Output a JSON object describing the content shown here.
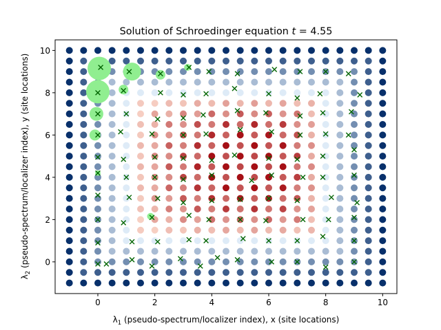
{
  "chart_data": {
    "type": "scatter",
    "title_prefix": "Solution of Schroedinger equation ",
    "title_var": "t",
    "title_value": " = 4.55",
    "xlabel_lambda": "λ",
    "xlabel_sub": "1",
    "xlabel_rest": " (pseudo-spectrum/localizer index), x (site locations)",
    "ylabel_lambda": "λ",
    "ylabel_sub": "2",
    "ylabel_rest": " (pseudo-spectrum/localizer index), y (site locations)",
    "xlim": [
      -1.5,
      10.5
    ],
    "ylim": [
      -1.5,
      10.5
    ],
    "xticks": [
      "0",
      "2",
      "4",
      "6",
      "8",
      "10"
    ],
    "yticks": [
      "0",
      "2",
      "4",
      "6",
      "8",
      "10"
    ],
    "tick_values": [
      0,
      2,
      4,
      6,
      8,
      10
    ],
    "grid": {
      "xmin": -1,
      "xmax": 10,
      "ymin": -1,
      "ymax": 10,
      "step": 0.5
    },
    "colors": {
      "blue_dark": "#08306b",
      "blue_light": "#deebf7",
      "red_light": "#fee0d2",
      "red_dark": "#a50f15",
      "marker_green": "#006400",
      "psi_green": "#90ee90"
    },
    "x_markers": [
      [
        0.0,
        -0.1
      ],
      [
        0.3,
        -0.1
      ],
      [
        1.2,
        0.1
      ],
      [
        1.9,
        -0.2
      ],
      [
        2.9,
        0.15
      ],
      [
        3.6,
        -0.2
      ],
      [
        4.2,
        0.2
      ],
      [
        4.9,
        0.1
      ],
      [
        6.1,
        -0.0
      ],
      [
        7.0,
        -0.0
      ],
      [
        8.0,
        -0.25
      ],
      [
        9.0,
        -0.0
      ],
      [
        0.0,
        0.9
      ],
      [
        1.2,
        0.95
      ],
      [
        2.1,
        0.95
      ],
      [
        3.2,
        1.05
      ],
      [
        3.8,
        1.0
      ],
      [
        5.1,
        1.1
      ],
      [
        6.0,
        1.0
      ],
      [
        7.0,
        1.0
      ],
      [
        7.9,
        1.2
      ],
      [
        9.0,
        1.0
      ],
      [
        0.0,
        2.0
      ],
      [
        0.9,
        1.85
      ],
      [
        1.9,
        2.1
      ],
      [
        3.2,
        2.2
      ],
      [
        3.9,
        2.0
      ],
      [
        5.0,
        2.0
      ],
      [
        5.9,
        1.95
      ],
      [
        7.2,
        2.0
      ],
      [
        8.1,
        2.0
      ],
      [
        9.0,
        2.1
      ],
      [
        0.0,
        3.15
      ],
      [
        1.1,
        3.05
      ],
      [
        2.1,
        3.0
      ],
      [
        3.0,
        2.8
      ],
      [
        4.0,
        2.9
      ],
      [
        5.0,
        2.95
      ],
      [
        6.0,
        3.0
      ],
      [
        7.0,
        2.9
      ],
      [
        8.2,
        3.05
      ],
      [
        9.1,
        2.8
      ],
      [
        0.0,
        4.2
      ],
      [
        1.0,
        4.0
      ],
      [
        2.0,
        4.0
      ],
      [
        3.0,
        3.9
      ],
      [
        4.0,
        4.1
      ],
      [
        5.4,
        3.85
      ],
      [
        6.1,
        4.1
      ],
      [
        7.2,
        4.0
      ],
      [
        7.9,
        4.0
      ],
      [
        9.0,
        4.1
      ],
      [
        0.0,
        4.95
      ],
      [
        0.9,
        4.85
      ],
      [
        2.0,
        4.95
      ],
      [
        3.0,
        4.9
      ],
      [
        4.0,
        4.8
      ],
      [
        4.8,
        5.05
      ],
      [
        6.0,
        4.9
      ],
      [
        7.0,
        4.85
      ],
      [
        7.9,
        5.0
      ],
      [
        9.0,
        5.3
      ],
      [
        0.0,
        6.0
      ],
      [
        0.8,
        6.15
      ],
      [
        1.9,
        6.05
      ],
      [
        3.0,
        6.0
      ],
      [
        3.8,
        6.05
      ],
      [
        5.0,
        6.25
      ],
      [
        6.1,
        6.15
      ],
      [
        7.1,
        6.0
      ],
      [
        8.0,
        6.05
      ],
      [
        8.8,
        6.0
      ],
      [
        0.0,
        7.0
      ],
      [
        1.0,
        7.0
      ],
      [
        2.1,
        6.75
      ],
      [
        3.0,
        6.8
      ],
      [
        3.7,
        6.95
      ],
      [
        4.9,
        7.15
      ],
      [
        5.9,
        7.05
      ],
      [
        7.1,
        6.9
      ],
      [
        7.9,
        7.05
      ],
      [
        8.9,
        7.1
      ],
      [
        0.0,
        8.0
      ],
      [
        0.9,
        8.1
      ],
      [
        2.2,
        8.0
      ],
      [
        3.0,
        7.9
      ],
      [
        3.8,
        7.95
      ],
      [
        4.8,
        8.2
      ],
      [
        6.0,
        7.95
      ],
      [
        7.0,
        7.75
      ],
      [
        7.8,
        7.95
      ],
      [
        9.2,
        7.9
      ],
      [
        0.1,
        9.2
      ],
      [
        1.1,
        9.0
      ],
      [
        2.2,
        8.9
      ],
      [
        3.2,
        9.2
      ],
      [
        3.9,
        9.0
      ],
      [
        4.9,
        8.9
      ],
      [
        6.2,
        9.1
      ],
      [
        7.1,
        9.0
      ],
      [
        8.0,
        9.0
      ],
      [
        8.8,
        8.9
      ]
    ],
    "psi_markers": [
      [
        0.05,
        9.15,
        17
      ],
      [
        1.2,
        9.0,
        13
      ],
      [
        2.2,
        8.85,
        7
      ],
      [
        3.15,
        9.2,
        5
      ],
      [
        0.0,
        8.05,
        17
      ],
      [
        0.9,
        8.15,
        7
      ],
      [
        -0.05,
        7.0,
        10
      ],
      [
        -0.1,
        6.0,
        8
      ],
      [
        0.0,
        4.2,
        4
      ],
      [
        1.85,
        2.15,
        5
      ]
    ]
  }
}
